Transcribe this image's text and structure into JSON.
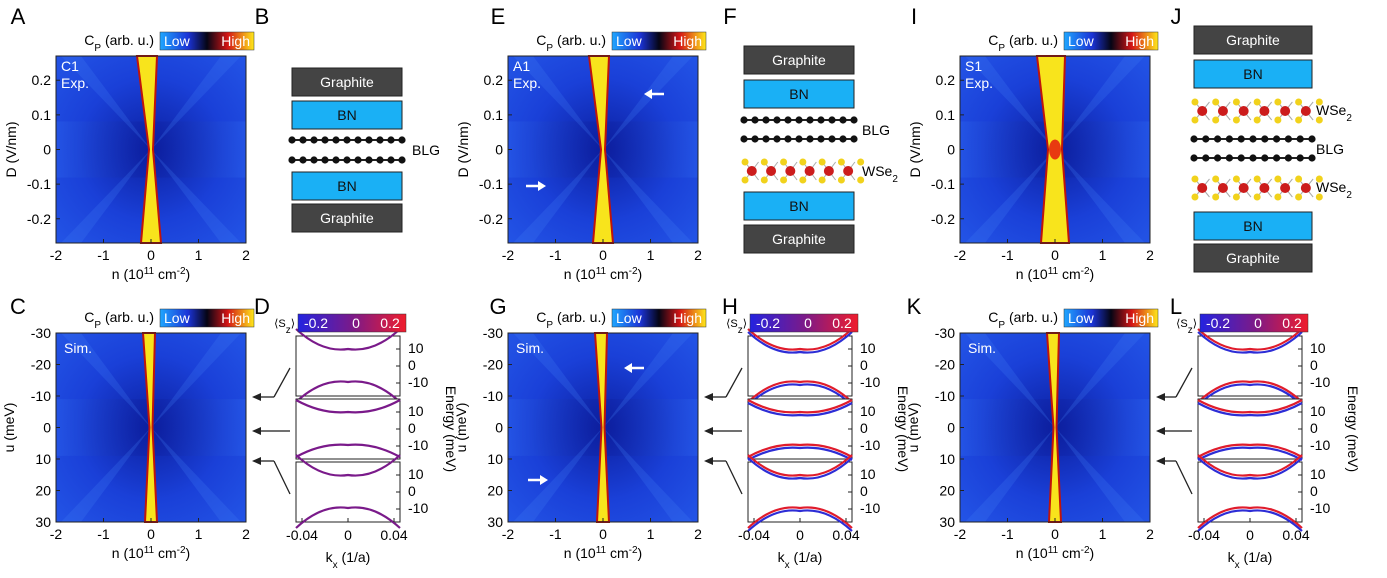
{
  "panel_letters": [
    "A",
    "B",
    "C",
    "D",
    "E",
    "F",
    "G",
    "H",
    "I",
    "J",
    "K",
    "L"
  ],
  "colorbar_cp": {
    "label_main": "C",
    "label_sub": "P",
    "label_unit": " (arb. u.)",
    "low": "Low",
    "high": "High"
  },
  "colorbar_sz": {
    "label": "⟨S",
    "label_sub": "z",
    "label_close": "⟩",
    "ticks": [
      "-0.2",
      "0",
      "0.2"
    ]
  },
  "exp_panels": [
    {
      "letter": "A",
      "tag1": "C1",
      "tag2": "Exp."
    },
    {
      "letter": "E",
      "tag1": "A1",
      "tag2": "Exp."
    },
    {
      "letter": "I",
      "tag1": "S1",
      "tag2": "Exp."
    }
  ],
  "sim_tag": "Sim.",
  "axes": {
    "exp_ylabel": "D (V/nm)",
    "exp_yticks": [
      "0.2",
      "0.1",
      "0",
      "-0.1",
      "-0.2"
    ],
    "sim_ylabel": "u (meV)",
    "sim_yticks": [
      "-30",
      "-20",
      "-10",
      "0",
      "10",
      "20",
      "30"
    ],
    "xticks_n": [
      "-2",
      "-1",
      "0",
      "1",
      "2"
    ],
    "xlabel_n_main": "n (10",
    "xlabel_n_sup": "11",
    "xlabel_n_unit": " cm",
    "xlabel_n_sup2": "-2",
    "xlabel_n_close": ")",
    "kx_ticks": [
      "-0.04",
      "0",
      "0.04"
    ],
    "kx_label_main": "k",
    "kx_label_sub": "x",
    "kx_label_unit": " (1/a)",
    "energy_ticks": [
      "10",
      "0",
      "-10"
    ],
    "energy_label": "Energy (meV)"
  },
  "stacks": {
    "B": [
      {
        "type": "block",
        "label": "Graphite",
        "color": "#444444"
      },
      {
        "type": "block",
        "label": "BN",
        "color": "#1ab0f5"
      },
      {
        "type": "chain"
      },
      {
        "type": "chain"
      },
      {
        "type": "block",
        "label": "BN",
        "color": "#1ab0f5"
      },
      {
        "type": "block",
        "label": "Graphite",
        "color": "#444444"
      }
    ],
    "B_side": {
      "label": "BLG"
    },
    "F": [
      {
        "type": "block",
        "label": "Graphite",
        "color": "#444444"
      },
      {
        "type": "block",
        "label": "BN",
        "color": "#1ab0f5"
      },
      {
        "type": "chain"
      },
      {
        "type": "chain"
      },
      {
        "type": "wse2"
      },
      {
        "type": "block",
        "label": "BN",
        "color": "#1ab0f5"
      },
      {
        "type": "block",
        "label": "Graphite",
        "color": "#444444"
      }
    ],
    "F_side": [
      {
        "label": "BLG"
      },
      {
        "label": "WSe",
        "sub": "2"
      }
    ],
    "J": [
      {
        "type": "block",
        "label": "Graphite",
        "color": "#444444"
      },
      {
        "type": "block",
        "label": "BN",
        "color": "#1ab0f5"
      },
      {
        "type": "wse2"
      },
      {
        "type": "chain"
      },
      {
        "type": "chain"
      },
      {
        "type": "wse2"
      },
      {
        "type": "block",
        "label": "BN",
        "color": "#1ab0f5"
      },
      {
        "type": "block",
        "label": "Graphite",
        "color": "#444444"
      }
    ],
    "J_side": [
      {
        "label": "WSe",
        "sub": "2"
      },
      {
        "label": "BLG"
      },
      {
        "label": "WSe",
        "sub": "2"
      }
    ]
  },
  "colors": {
    "map_bg": "#1a3fd8",
    "map_dark": "#0b1a8a",
    "peak": "#f8e41c",
    "peak_edge": "#c0140a",
    "sz_neg": "#2d2dd6",
    "sz_zero": "#7a1a8a",
    "sz_pos": "#e01c2c"
  }
}
